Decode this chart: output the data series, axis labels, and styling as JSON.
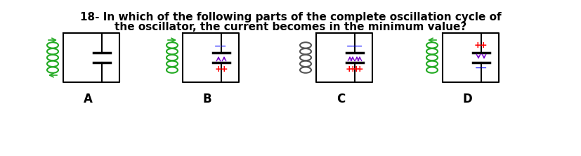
{
  "title_line1": "18- In which of the following parts of the complete oscillation cycle of",
  "title_line2": "the oscillator, the current becomes in the minimum value?",
  "labels": [
    "A",
    "B",
    "C",
    "D"
  ],
  "bg_color": "#ffffff",
  "title_fontsize": 11,
  "label_fontsize": 12
}
